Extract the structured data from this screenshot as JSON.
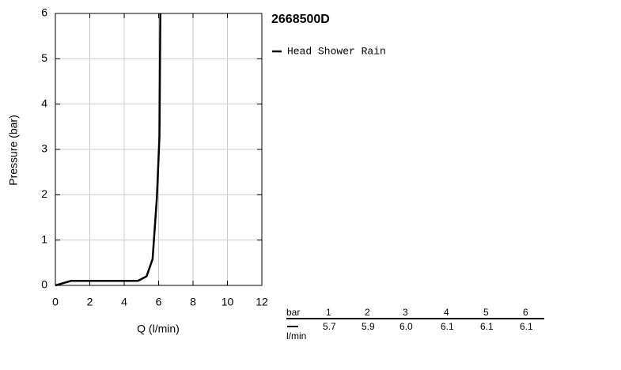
{
  "chart_data": {
    "type": "line",
    "title": "2668500D",
    "x": [
      0,
      0.9,
      4.8,
      5.3,
      5.65,
      5.9,
      6.05,
      6.1
    ],
    "series": [
      {
        "name": "Head Shower Rain",
        "color": "#000000",
        "values": [
          0,
          0.1,
          0.1,
          0.2,
          0.58,
          1.94,
          3.3,
          6
        ]
      }
    ],
    "xlabel": "Q (l/min)",
    "ylabel": "Pressure (bar)",
    "xlim": [
      0,
      12
    ],
    "xticks": [
      0,
      2,
      4,
      6,
      8,
      10,
      12
    ],
    "ylim": [
      0,
      6
    ],
    "yticks": [
      0,
      1,
      2,
      3,
      4,
      5,
      6
    ],
    "grid": true
  },
  "flow_table": {
    "pressure_header": "bar",
    "pressures": [
      1,
      2,
      3,
      4,
      5,
      6
    ],
    "flow_header": "l/min",
    "flows": [
      "5.7",
      "5.9",
      "6.0",
      "6.1",
      "6.1",
      "6.1"
    ]
  }
}
